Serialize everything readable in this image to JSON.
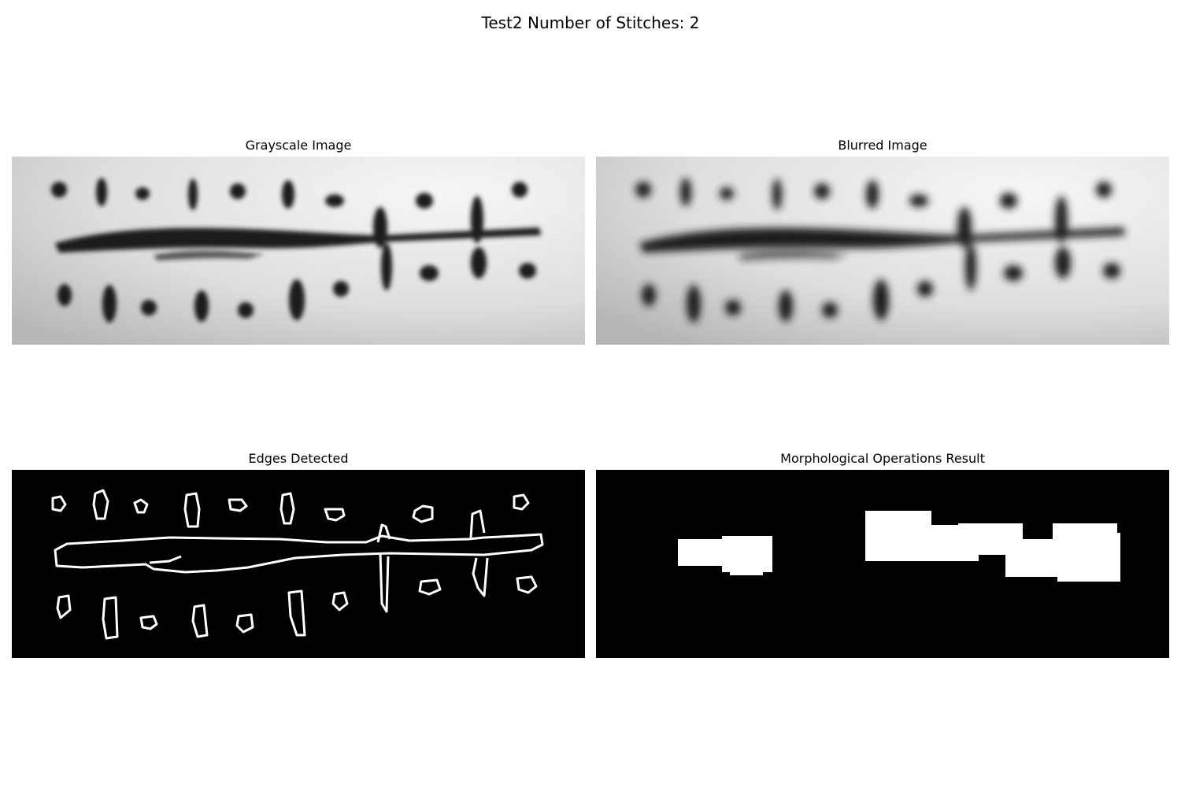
{
  "figure": {
    "title": "Test2 Number of Stitches: 2"
  },
  "panels": [
    {
      "title": "Grayscale Image"
    },
    {
      "title": "Blurred Image"
    },
    {
      "title": "Edges Detected"
    },
    {
      "title": "Morphological Operations Result"
    }
  ],
  "colors": {
    "background": "#ffffff",
    "ink": "#1a1a1a",
    "edge": "#ffffff",
    "mask_bg": "#000000"
  }
}
